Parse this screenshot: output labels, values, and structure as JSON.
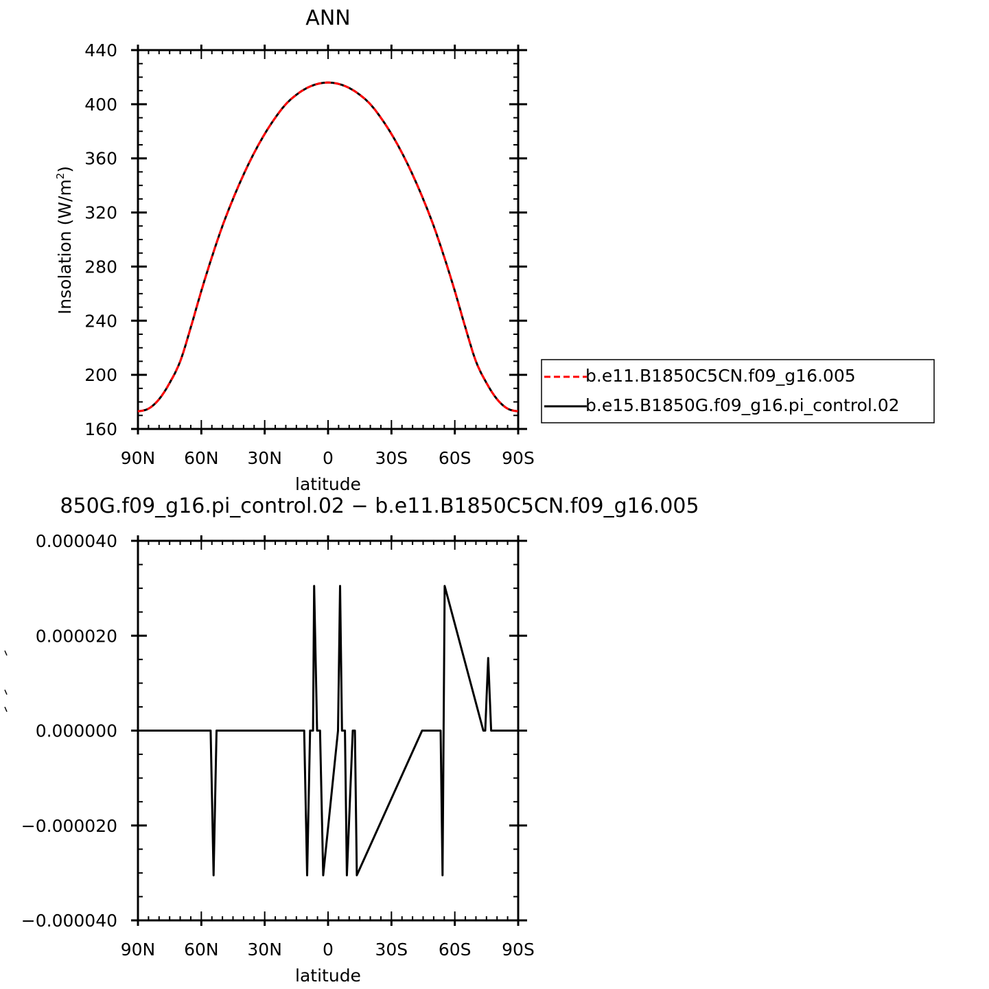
{
  "chart_data": [
    {
      "type": "line",
      "title": "ANN",
      "xlabel": "latitude",
      "ylabel": "Insolation",
      "ylabel_units_base": "(W/m",
      "ylabel_units_sup": "2",
      "ylabel_units_close": ")",
      "xlim": [
        90,
        -90
      ],
      "ylim": [
        160,
        440
      ],
      "xticks": [
        {
          "value": 90,
          "label": "90N"
        },
        {
          "value": 60,
          "label": "60N"
        },
        {
          "value": 30,
          "label": "30N"
        },
        {
          "value": 0,
          "label": "0"
        },
        {
          "value": -30,
          "label": "30S"
        },
        {
          "value": -60,
          "label": "60S"
        },
        {
          "value": -90,
          "label": "90S"
        }
      ],
      "yticks": [
        {
          "value": 160,
          "label": "160"
        },
        {
          "value": 200,
          "label": "200"
        },
        {
          "value": 240,
          "label": "240"
        },
        {
          "value": 280,
          "label": "280"
        },
        {
          "value": 320,
          "label": "320"
        },
        {
          "value": 360,
          "label": "360"
        },
        {
          "value": 400,
          "label": "400"
        },
        {
          "value": 440,
          "label": "440"
        }
      ],
      "grid": false,
      "legend_position": "right",
      "series": [
        {
          "name": "b.e11.B1850C5CN.f09_g16.005",
          "color": "#ff0000",
          "style": "dashed",
          "x": [
            90,
            85,
            80,
            75,
            70,
            65,
            60,
            55,
            50,
            45,
            40,
            35,
            30,
            25,
            20,
            15,
            10,
            5,
            0,
            -5,
            -10,
            -15,
            -20,
            -25,
            -30,
            -35,
            -40,
            -45,
            -50,
            -55,
            -60,
            -65,
            -70,
            -75,
            -80,
            -85,
            -90
          ],
          "y": [
            173,
            175,
            182,
            194,
            210,
            235,
            262,
            287,
            310,
            330,
            348,
            364,
            378,
            390,
            400,
            407,
            412,
            415,
            416,
            415,
            412,
            407,
            400,
            390,
            378,
            364,
            348,
            330,
            310,
            287,
            262,
            235,
            210,
            194,
            182,
            175,
            173
          ]
        },
        {
          "name": "b.e15.B1850G.f09_g16.pi_control.02",
          "color": "#000000",
          "style": "solid",
          "x": [
            90,
            85,
            80,
            75,
            70,
            65,
            60,
            55,
            50,
            45,
            40,
            35,
            30,
            25,
            20,
            15,
            10,
            5,
            0,
            -5,
            -10,
            -15,
            -20,
            -25,
            -30,
            -35,
            -40,
            -45,
            -50,
            -55,
            -60,
            -65,
            -70,
            -75,
            -80,
            -85,
            -90
          ],
          "y": [
            173,
            175,
            182,
            194,
            210,
            235,
            262,
            287,
            310,
            330,
            348,
            364,
            378,
            390,
            400,
            407,
            412,
            415,
            416,
            415,
            412,
            407,
            400,
            390,
            378,
            364,
            348,
            330,
            310,
            287,
            262,
            235,
            210,
            194,
            182,
            175,
            173
          ]
        }
      ]
    },
    {
      "type": "line",
      "title": "850G.f09_g16.pi_control.02 − b.e11.B1850C5CN.f09_g16.005",
      "xlabel": "latitude",
      "xlim": [
        90,
        -90
      ],
      "ylim": [
        -4e-05,
        4e-05
      ],
      "xticks": [
        {
          "value": 90,
          "label": "90N"
        },
        {
          "value": 60,
          "label": "60N"
        },
        {
          "value": 30,
          "label": "30N"
        },
        {
          "value": 0,
          "label": "0"
        },
        {
          "value": -30,
          "label": "30S"
        },
        {
          "value": -60,
          "label": "60S"
        },
        {
          "value": -90,
          "label": "90S"
        }
      ],
      "yticks": [
        {
          "value": -4e-05,
          "label": "−0.000040"
        },
        {
          "value": -2e-05,
          "label": "−0.000020"
        },
        {
          "value": 0,
          "label": "0.000000"
        },
        {
          "value": 2e-05,
          "label": "0.000020"
        },
        {
          "value": 4e-05,
          "label": "0.000040"
        }
      ],
      "grid": false,
      "series": [
        {
          "color": "#000000",
          "style": "solid",
          "x": [
            90,
            55.6,
            54.2,
            52.8,
            11.3,
            9.9,
            8.5,
            7.1,
            6.6,
            5.2,
            3.8,
            2.3,
            -4.7,
            -5.7,
            -6.6,
            -8.0,
            -8.9,
            -11.7,
            -12.7,
            -13.6,
            -44.5,
            -53.3,
            -54.2,
            -55.2,
            -73.5,
            -74.4,
            -75.8,
            -77.2,
            -90
          ],
          "y": [
            0,
            0,
            -3.05e-05,
            0,
            0,
            -3.05e-05,
            0,
            0,
            3.05e-05,
            0,
            0,
            -3.05e-05,
            0,
            3.05e-05,
            0,
            0,
            -3.05e-05,
            0,
            0,
            -3.05e-05,
            0,
            0,
            -3.05e-05,
            3.05e-05,
            0,
            0,
            1.53e-05,
            0,
            0
          ]
        }
      ]
    }
  ]
}
